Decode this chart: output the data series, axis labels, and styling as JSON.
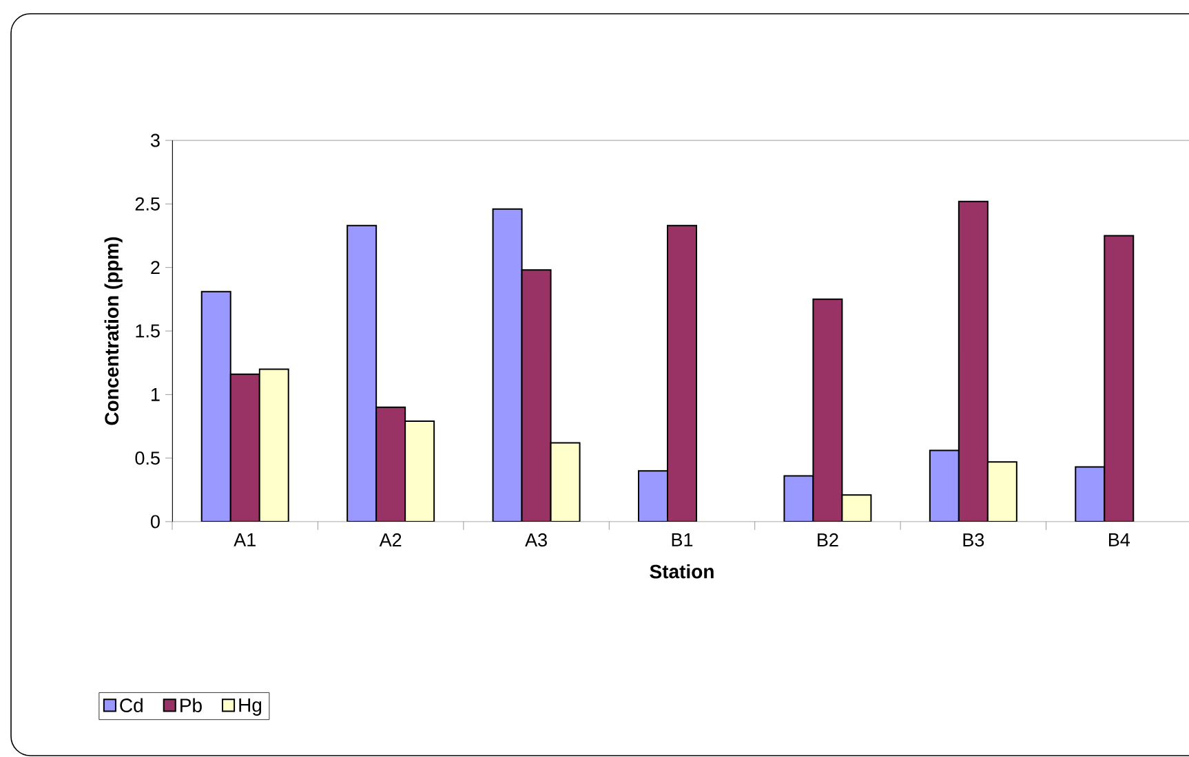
{
  "chart_data": {
    "type": "bar",
    "xlabel": "Station",
    "ylabel": "Concentration (ppm)",
    "categories": [
      "A1",
      "A2",
      "A3",
      "B1",
      "B2",
      "B3",
      "B4"
    ],
    "series": [
      {
        "name": "Cd",
        "color": "#9999ff",
        "values": [
          1.81,
          2.33,
          2.46,
          0.4,
          0.36,
          0.56,
          0.43
        ]
      },
      {
        "name": "Pb",
        "color": "#993366",
        "values": [
          1.16,
          0.9,
          1.98,
          2.33,
          1.75,
          2.52,
          2.25
        ]
      },
      {
        "name": "Hg",
        "color": "#ffffcc",
        "values": [
          1.2,
          0.79,
          0.62,
          null,
          0.21,
          0.47,
          null
        ]
      }
    ],
    "ylim": [
      0,
      3
    ],
    "yticks": [
      0,
      0.5,
      1,
      1.5,
      2,
      2.5,
      3
    ],
    "grid": false,
    "legend": "bottom left"
  }
}
